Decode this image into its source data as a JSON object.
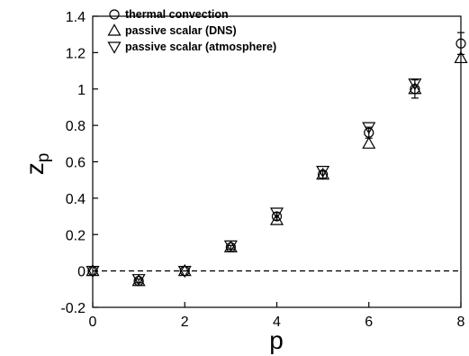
{
  "chart_data": {
    "type": "scatter",
    "title": "",
    "xlabel": "p",
    "ylabel": {
      "main": "z",
      "sub": "p"
    },
    "xlim": [
      0,
      8
    ],
    "ylim": [
      -0.2,
      1.4
    ],
    "xticks": [
      "0",
      "2",
      "4",
      "6",
      "8"
    ],
    "yticks": [
      "-0.2",
      "0",
      "0.2",
      "0.4",
      "0.6",
      "0.8",
      "1",
      "1.2",
      "1.4"
    ],
    "grid": false,
    "legend_position": "top-left",
    "reference_line": {
      "y": 0,
      "style": "dashed"
    },
    "series": [
      {
        "name": "thermal convection",
        "marker": "circle",
        "x": [
          0,
          1,
          2,
          3,
          4,
          5,
          6,
          7,
          8
        ],
        "y": [
          0,
          -0.055,
          0,
          0.13,
          0.3,
          0.53,
          0.76,
          1.0,
          1.25
        ],
        "yerr": [
          0,
          0.01,
          0,
          0.01,
          0.02,
          0.02,
          0.03,
          0.05,
          0.06
        ]
      },
      {
        "name": "passive scalar (DNS)",
        "marker": "triangle-up",
        "x": [
          0,
          1,
          2,
          3,
          4,
          5,
          6,
          7,
          8
        ],
        "y": [
          0,
          -0.055,
          0,
          0.13,
          0.28,
          0.53,
          0.7,
          1.0,
          1.17
        ]
      },
      {
        "name": "passive scalar (atmosphere)",
        "marker": "triangle-down",
        "x": [
          0,
          1,
          2,
          3,
          4,
          5,
          6,
          7
        ],
        "y": [
          0,
          -0.045,
          0,
          0.14,
          0.32,
          0.55,
          0.79,
          1.03
        ]
      }
    ]
  }
}
